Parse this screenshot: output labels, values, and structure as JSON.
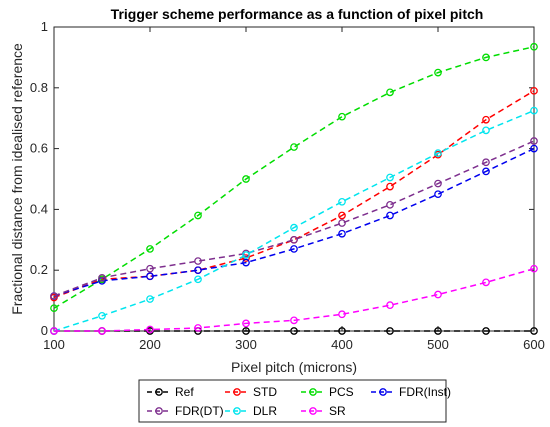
{
  "chart_data": {
    "type": "line",
    "title": "Trigger scheme performance as a function of pixel pitch",
    "xlabel": "Pixel pitch (microns)",
    "ylabel": "Fractional distance from idealised reference",
    "xlim": [
      100,
      600
    ],
    "ylim": [
      0,
      1
    ],
    "xticks": [
      "100",
      "200",
      "300",
      "400",
      "500",
      "600"
    ],
    "yticks": [
      "0",
      "0.2",
      "0.4",
      "0.6",
      "0.8",
      "1"
    ],
    "x": [
      100,
      150,
      200,
      250,
      300,
      350,
      400,
      450,
      500,
      550,
      600
    ],
    "grid": false,
    "legend_position": "bottom-outside",
    "series": [
      {
        "name": "Ref",
        "color": "#000000",
        "values": [
          0,
          0,
          0,
          0,
          0,
          0,
          0,
          0,
          0,
          0,
          0
        ]
      },
      {
        "name": "STD",
        "color": "#ff0000",
        "values": [
          0.11,
          0.17,
          0.18,
          0.2,
          0.24,
          0.3,
          0.38,
          0.475,
          0.58,
          0.695,
          0.79
        ]
      },
      {
        "name": "PCS",
        "color": "#00dd00",
        "values": [
          0.075,
          0.17,
          0.27,
          0.38,
          0.5,
          0.605,
          0.705,
          0.785,
          0.85,
          0.9,
          0.935
        ]
      },
      {
        "name": "FDR(Inst)",
        "color": "#0000ee",
        "values": [
          0.115,
          0.165,
          0.18,
          0.2,
          0.225,
          0.27,
          0.32,
          0.38,
          0.45,
          0.525,
          0.6
        ]
      },
      {
        "name": "FDR(DT)",
        "color": "#7e2f8e",
        "values": [
          0.115,
          0.175,
          0.205,
          0.23,
          0.255,
          0.3,
          0.355,
          0.415,
          0.485,
          0.555,
          0.625
        ]
      },
      {
        "name": "DLR",
        "color": "#00e5ee",
        "values": [
          0,
          0.05,
          0.105,
          0.17,
          0.25,
          0.34,
          0.425,
          0.505,
          0.585,
          0.66,
          0.725
        ]
      },
      {
        "name": "SR",
        "color": "#ff00ff",
        "values": [
          0,
          0,
          0.005,
          0.01,
          0.025,
          0.035,
          0.055,
          0.085,
          0.12,
          0.16,
          0.205
        ]
      }
    ]
  }
}
